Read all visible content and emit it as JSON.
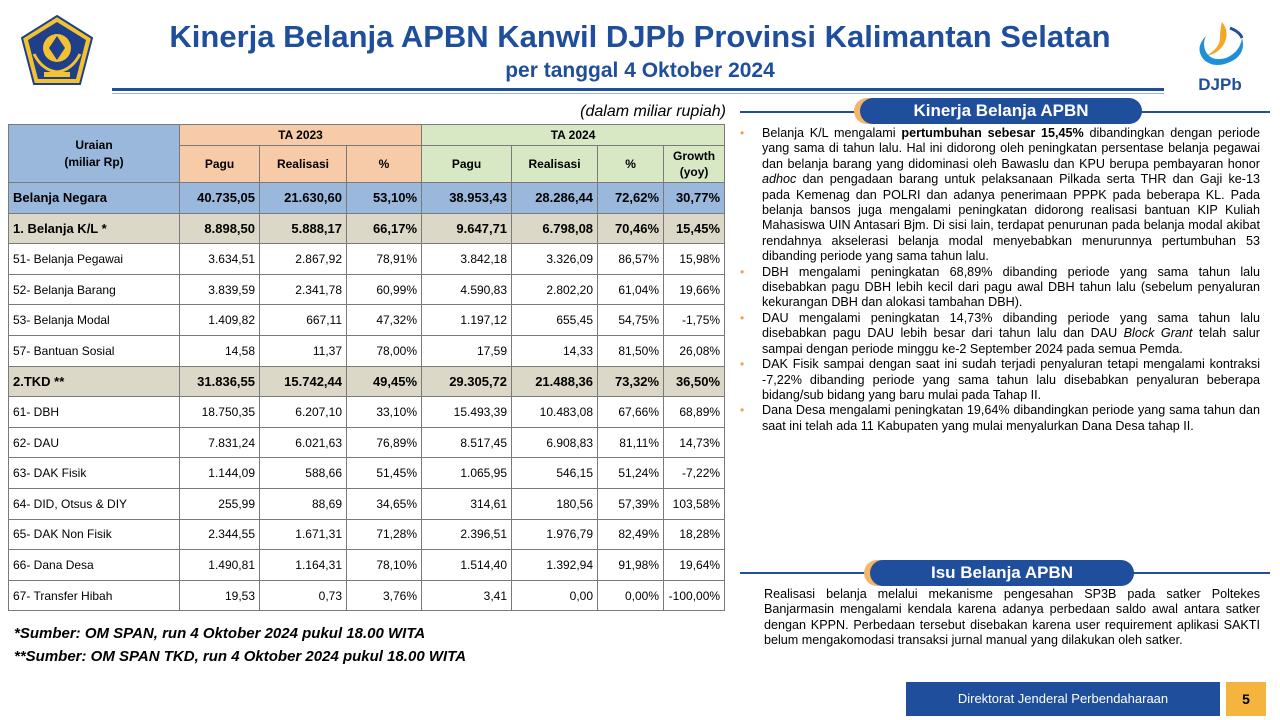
{
  "header": {
    "title": "Kinerja Belanja APBN Kanwil DJPb Provinsi Kalimantan Selatan",
    "subtitle": "per tanggal 4 Oktober 2024",
    "brand_right": "DJPb",
    "logo_left_icon": "kemenkeu-emblem-icon"
  },
  "table": {
    "unit_note": "(dalam miliar rupiah)",
    "header_uraian": "Uraian",
    "header_uraian_sub": "(miliar Rp)",
    "header_ta2023": "TA 2023",
    "header_ta2024": "TA 2024",
    "col_pagu": "Pagu",
    "col_realisasi": "Realisasi",
    "col_pct": "%",
    "col_growth": "Growth",
    "col_growth_sub": "(yoy)",
    "rows": [
      {
        "label": "Belanja Negara",
        "p23": "40.735,05",
        "r23": "21.630,60",
        "pct23": "53,10%",
        "p24": "38.953,43",
        "r24": "28.286,44",
        "pct24": "72,62%",
        "growth": "30,77%",
        "type": "total"
      },
      {
        "label": "1. Belanja K/L *",
        "p23": "8.898,50",
        "r23": "5.888,17",
        "pct23": "66,17%",
        "p24": "9.647,71",
        "r24": "6.798,08",
        "pct24": "70,46%",
        "growth": "15,45%",
        "type": "sub"
      },
      {
        "label": "51- Belanja Pegawai",
        "p23": "3.634,51",
        "r23": "2.867,92",
        "pct23": "78,91%",
        "p24": "3.842,18",
        "r24": "3.326,09",
        "pct24": "86,57%",
        "growth": "15,98%",
        "type": "item"
      },
      {
        "label": "52- Belanja Barang",
        "p23": "3.839,59",
        "r23": "2.341,78",
        "pct23": "60,99%",
        "p24": "4.590,83",
        "r24": "2.802,20",
        "pct24": "61,04%",
        "growth": "19,66%",
        "type": "item"
      },
      {
        "label": "53- Belanja Modal",
        "p23": "1.409,82",
        "r23": "667,11",
        "pct23": "47,32%",
        "p24": "1.197,12",
        "r24": "655,45",
        "pct24": "54,75%",
        "growth": "-1,75%",
        "type": "item"
      },
      {
        "label": "57- Bantuan Sosial",
        "p23": "14,58",
        "r23": "11,37",
        "pct23": "78,00%",
        "p24": "17,59",
        "r24": "14,33",
        "pct24": "81,50%",
        "growth": "26,08%",
        "type": "item"
      },
      {
        "label": "2.TKD **",
        "p23": "31.836,55",
        "r23": "15.742,44",
        "pct23": "49,45%",
        "p24": "29.305,72",
        "r24": "21.488,36",
        "pct24": "73,32%",
        "growth": "36,50%",
        "type": "sub"
      },
      {
        "label": "61- DBH",
        "p23": "18.750,35",
        "r23": "6.207,10",
        "pct23": "33,10%",
        "p24": "15.493,39",
        "r24": "10.483,08",
        "pct24": "67,66%",
        "growth": "68,89%",
        "type": "item"
      },
      {
        "label": "62- DAU",
        "p23": "7.831,24",
        "r23": "6.021,63",
        "pct23": "76,89%",
        "p24": "8.517,45",
        "r24": "6.908,83",
        "pct24": "81,11%",
        "growth": "14,73%",
        "type": "item"
      },
      {
        "label": "63- DAK Fisik",
        "p23": "1.144,09",
        "r23": "588,66",
        "pct23": "51,45%",
        "p24": "1.065,95",
        "r24": "546,15",
        "pct24": "51,24%",
        "growth": "-7,22%",
        "type": "item"
      },
      {
        "label": "64- DID, Otsus & DIY",
        "p23": "255,99",
        "r23": "88,69",
        "pct23": "34,65%",
        "p24": "314,61",
        "r24": "180,56",
        "pct24": "57,39%",
        "growth": "103,58%",
        "type": "item"
      },
      {
        "label": "65- DAK Non Fisik",
        "p23": "2.344,55",
        "r23": "1.671,31",
        "pct23": "71,28%",
        "p24": "2.396,51",
        "r24": "1.976,79",
        "pct24": "82,49%",
        "growth": "18,28%",
        "type": "item"
      },
      {
        "label": "66- Dana Desa",
        "p23": "1.490,81",
        "r23": "1.164,31",
        "pct23": "78,10%",
        "p24": "1.514,40",
        "r24": "1.392,94",
        "pct24": "91,98%",
        "growth": "19,64%",
        "type": "item"
      },
      {
        "label": "67- Transfer Hibah",
        "p23": "19,53",
        "r23": "0,73",
        "pct23": "3,76%",
        "p24": "3,41",
        "r24": "0,00",
        "pct24": "0,00%",
        "growth": "-100,00%",
        "type": "item"
      }
    ],
    "source1": "*Sumber: OM SPAN, run 4 Oktober 2024 pukul 18.00 WITA",
    "source2": "**Sumber: OM SPAN TKD, run 4 Oktober 2024 pukul 18.00 WITA"
  },
  "kinerja": {
    "heading": "Kinerja Belanja APBN",
    "bullet1_pre": "Belanja K/L mengalami ",
    "bullet1_bold": "pertumbuhan sebesar 15,45%",
    "bullet1_mid": " dibandingkan dengan periode yang sama di tahun lalu. Hal ini didorong oleh peningkatan persentase belanja pegawai dan belanja barang yang didominasi oleh Bawaslu dan KPU berupa pembayaran honor ",
    "bullet1_italic": "adhoc",
    "bullet1_post": " dan pengadaan barang untuk pelaksanaan Pilkada serta THR dan Gaji ke-13 pada Kemenag dan POLRI dan adanya penerimaan PPPK pada beberapa KL. Pada belanja bansos juga mengalami peningkatan didorong realisasi bantuan KIP Kuliah Mahasiswa UIN Antasari Bjm. Di sisi lain, terdapat penurunan pada belanja modal akibat rendahnya akselerasi belanja modal menyebabkan menurunnya pertumbuhan 53 dibanding periode yang sama tahun lalu.",
    "bullet2": "DBH mengalami peningkatan 68,89% dibanding periode yang sama tahun lalu disebabkan pagu DBH lebih kecil dari pagu awal DBH tahun lalu (sebelum penyaluran kekurangan DBH dan alokasi tambahan DBH).",
    "bullet3_pre": "DAU mengalami peningkatan 14,73% dibanding periode yang sama tahun lalu disebabkan pagu DAU lebih besar dari tahun lalu dan DAU ",
    "bullet3_italic": "Block Grant",
    "bullet3_post": " telah salur sampai dengan periode minggu ke-2 September 2024 pada semua Pemda.",
    "bullet4": "DAK Fisik sampai dengan saat ini sudah terjadi penyaluran tetapi mengalami kontraksi -7,22% dibanding periode yang sama tahun lalu disebabkan penyaluran beberapa bidang/sub bidang yang baru mulai pada Tahap II.",
    "bullet5": "Dana Desa mengalami peningkatan 19,64% dibandingkan periode yang sama tahun dan saat ini telah ada 11 Kabupaten yang mulai menyalurkan Dana Desa tahap II."
  },
  "isu": {
    "heading": "Isu Belanja APBN",
    "text": "Realisasi belanja melalui mekanisme pengesahan SP3B pada satker Poltekes Banjarmasin mengalami kendala karena adanya perbedaan saldo awal antara satker dengan KPPN. Perbedaan tersebut disebakan karena user requirement aplikasi SAKTI belum mengakomodasi transaksi jurnal manual yang dilakukan oleh satker."
  },
  "footer": {
    "org": "Direktorat Jenderal Perbendaharaan",
    "page": "5"
  },
  "colors": {
    "brand_blue": "#1f4e9c",
    "accent_orange": "#f3b56b",
    "header_2023": "#f7cba7",
    "header_2024": "#d8e7c4",
    "row_total": "#9ab8dc",
    "row_sub": "#dcd8c8"
  }
}
